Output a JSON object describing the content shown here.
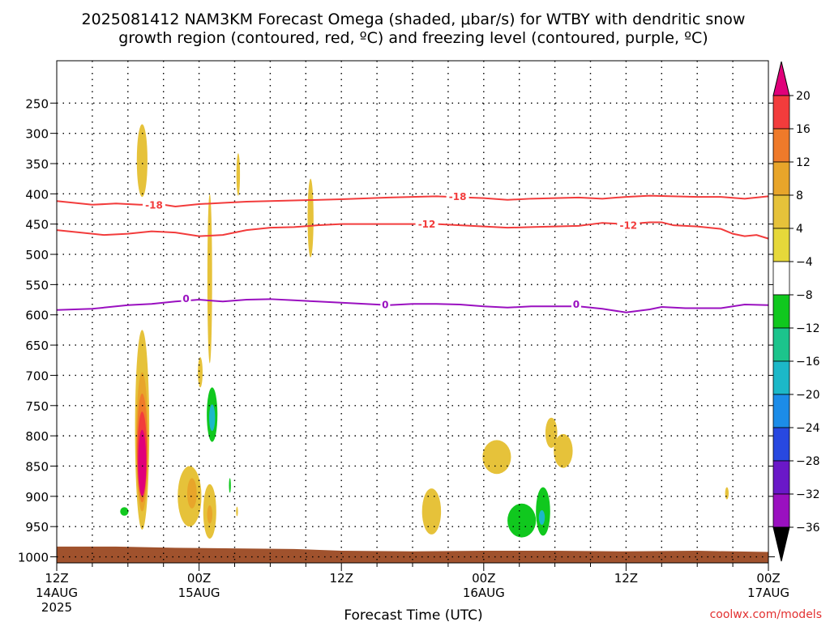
{
  "chart_data": {
    "type": "heatmap",
    "title_line1": "2025081412 NAM3KM Forecast Omega (shaded, μbar/s) for WTBY with dendritic snow",
    "title_line2": "growth region (contoured, red, ºC) and freezing level (contoured, purple, ºC)",
    "xlabel": "Forecast Time (UTC)",
    "ylabel": "",
    "credit": "coolwx.com/models",
    "x_range_hours": [
      0,
      60
    ],
    "y_range_mb": [
      1010,
      180
    ],
    "y_ticks": [
      {
        "value": 250,
        "label": "250"
      },
      {
        "value": 300,
        "label": "300"
      },
      {
        "value": 350,
        "label": "350"
      },
      {
        "value": 400,
        "label": "400"
      },
      {
        "value": 450,
        "label": "450"
      },
      {
        "value": 500,
        "label": "500"
      },
      {
        "value": 550,
        "label": "550"
      },
      {
        "value": 600,
        "label": "600"
      },
      {
        "value": 650,
        "label": "650"
      },
      {
        "value": 700,
        "label": "700"
      },
      {
        "value": 750,
        "label": "750"
      },
      {
        "value": 800,
        "label": "800"
      },
      {
        "value": 850,
        "label": "850"
      },
      {
        "value": 900,
        "label": "900"
      },
      {
        "value": 950,
        "label": "950"
      },
      {
        "value": 1000,
        "label": "1000"
      }
    ],
    "x_ticks": [
      {
        "hour": 0,
        "line1": "12Z",
        "line2": "14AUG",
        "line3": "2025"
      },
      {
        "hour": 12,
        "line1": "00Z",
        "line2": "15AUG",
        "line3": ""
      },
      {
        "hour": 24,
        "line1": "12Z",
        "line2": "",
        "line3": ""
      },
      {
        "hour": 36,
        "line1": "00Z",
        "line2": "16AUG",
        "line3": ""
      },
      {
        "hour": 48,
        "line1": "12Z",
        "line2": "",
        "line3": ""
      },
      {
        "hour": 60,
        "line1": "00Z",
        "line2": "17AUG",
        "line3": ""
      }
    ],
    "grid": true,
    "colorbar": {
      "labels": [
        "20",
        "16",
        "12",
        "8",
        "4",
        "−4",
        "−8",
        "−12",
        "−16",
        "−20",
        "−24",
        "−28",
        "−32",
        "−36"
      ],
      "top_arrow_color": "#e0007a",
      "bottom_arrow_color": "#000000",
      "bin_colors": [
        "#f23c3c",
        "#ef7a2a",
        "#e8a52a",
        "#e6c23a",
        "#e6d83a",
        "#ffffff",
        "#10c81e",
        "#1cc48c",
        "#1cb8c8",
        "#1c8ce8",
        "#2848e0",
        "#6a18c8",
        "#9a10c0",
        "#a8a8a8"
      ]
    },
    "contours": [
      {
        "name": "-18",
        "color": "#f23c3c",
        "points": [
          [
            0,
            412
          ],
          [
            3,
            418
          ],
          [
            5,
            416
          ],
          [
            7,
            418
          ],
          [
            9,
            418
          ],
          [
            10,
            421
          ],
          [
            12,
            417
          ],
          [
            14,
            415
          ],
          [
            16,
            413
          ],
          [
            20,
            411
          ],
          [
            24,
            409
          ],
          [
            28,
            406
          ],
          [
            32,
            404
          ],
          [
            36,
            407
          ],
          [
            38,
            410
          ],
          [
            40,
            408
          ],
          [
            44,
            406
          ],
          [
            46,
            408
          ],
          [
            48,
            405
          ],
          [
            50,
            403
          ],
          [
            52,
            404
          ],
          [
            54,
            405
          ],
          [
            56,
            405
          ],
          [
            58,
            408
          ],
          [
            60,
            404
          ]
        ],
        "labels": [
          {
            "x": 8.2,
            "y": 418,
            "text": "-18"
          },
          {
            "x": 33.8,
            "y": 404,
            "text": "-18"
          }
        ]
      },
      {
        "name": "-12",
        "color": "#f23c3c",
        "points": [
          [
            0,
            460
          ],
          [
            2,
            464
          ],
          [
            4,
            468
          ],
          [
            6,
            466
          ],
          [
            8,
            462
          ],
          [
            10,
            464
          ],
          [
            12,
            470
          ],
          [
            14,
            468
          ],
          [
            16,
            460
          ],
          [
            18,
            456
          ],
          [
            20,
            455
          ],
          [
            22,
            452
          ],
          [
            24,
            450
          ],
          [
            28,
            450
          ],
          [
            32,
            450
          ],
          [
            34,
            452
          ],
          [
            36,
            454
          ],
          [
            38,
            456
          ],
          [
            40,
            455
          ],
          [
            42,
            454
          ],
          [
            44,
            453
          ],
          [
            46,
            448
          ],
          [
            47,
            449
          ],
          [
            48,
            450
          ],
          [
            50,
            447
          ],
          [
            51,
            447
          ],
          [
            52,
            452
          ],
          [
            54,
            454
          ],
          [
            56,
            458
          ],
          [
            57,
            466
          ],
          [
            58,
            470
          ],
          [
            59,
            468
          ],
          [
            60,
            474
          ]
        ],
        "labels": [
          {
            "x": 31.2,
            "y": 450,
            "text": "-12"
          },
          {
            "x": 48.2,
            "y": 452,
            "text": "-12"
          }
        ]
      },
      {
        "name": "0",
        "color": "#9a10c0",
        "points": [
          [
            0,
            592
          ],
          [
            3,
            590
          ],
          [
            6,
            584
          ],
          [
            8,
            582
          ],
          [
            10,
            578
          ],
          [
            12,
            575
          ],
          [
            14,
            578
          ],
          [
            16,
            575
          ],
          [
            18,
            574
          ],
          [
            20,
            576
          ],
          [
            22,
            578
          ],
          [
            24,
            580
          ],
          [
            26,
            582
          ],
          [
            28,
            584
          ],
          [
            30,
            582
          ],
          [
            32,
            582
          ],
          [
            34,
            583
          ],
          [
            36,
            586
          ],
          [
            38,
            588
          ],
          [
            40,
            586
          ],
          [
            42,
            586
          ],
          [
            44,
            586
          ],
          [
            46,
            590
          ],
          [
            48,
            596
          ],
          [
            50,
            591
          ],
          [
            51,
            587
          ],
          [
            53,
            589
          ],
          [
            56,
            589
          ],
          [
            58,
            583
          ],
          [
            60,
            584
          ]
        ],
        "labels": [
          {
            "x": 10.9,
            "y": 573,
            "text": "0"
          },
          {
            "x": 27.7,
            "y": 583,
            "text": "0"
          },
          {
            "x": 43.8,
            "y": 582,
            "text": "0"
          }
        ]
      }
    ],
    "omega_blobs": [
      {
        "x": 7.2,
        "y": 345,
        "rx": 0.45,
        "ry": 60,
        "value": 5
      },
      {
        "x": 7.2,
        "y": 790,
        "rx": 0.6,
        "ry": 165,
        "value": 5
      },
      {
        "x": 7.2,
        "y": 810,
        "rx": 0.5,
        "ry": 115,
        "value": 9
      },
      {
        "x": 7.2,
        "y": 820,
        "rx": 0.45,
        "ry": 90,
        "value": 13
      },
      {
        "x": 7.2,
        "y": 830,
        "rx": 0.4,
        "ry": 70,
        "value": 17
      },
      {
        "x": 7.2,
        "y": 845,
        "rx": 0.34,
        "ry": 55,
        "value": 21
      },
      {
        "x": 5.7,
        "y": 925,
        "rx": 0.35,
        "ry": 7,
        "value": -5
      },
      {
        "x": 12.9,
        "y": 540,
        "rx": 0.2,
        "ry": 140,
        "value": 5
      },
      {
        "x": 13.1,
        "y": 765,
        "rx": 0.45,
        "ry": 45,
        "value": -5
      },
      {
        "x": 13.1,
        "y": 770,
        "rx": 0.25,
        "ry": 22,
        "value": -13
      },
      {
        "x": 14.6,
        "y": 882,
        "rx": 0.08,
        "ry": 12,
        "value": -5
      },
      {
        "x": 11.2,
        "y": 900,
        "rx": 1.0,
        "ry": 50,
        "value": 5
      },
      {
        "x": 11.4,
        "y": 895,
        "rx": 0.4,
        "ry": 25,
        "value": 9
      },
      {
        "x": 12.9,
        "y": 925,
        "rx": 0.55,
        "ry": 45,
        "value": 5
      },
      {
        "x": 12.9,
        "y": 930,
        "rx": 0.22,
        "ry": 15,
        "value": 9
      },
      {
        "x": 12.1,
        "y": 695,
        "rx": 0.2,
        "ry": 25,
        "value": 5
      },
      {
        "x": 15.3,
        "y": 368,
        "rx": 0.15,
        "ry": 35,
        "value": 5
      },
      {
        "x": 15.2,
        "y": 925,
        "rx": 0.08,
        "ry": 8,
        "value": 5
      },
      {
        "x": 21.4,
        "y": 440,
        "rx": 0.25,
        "ry": 65,
        "value": 5
      },
      {
        "x": 31.6,
        "y": 925,
        "rx": 0.8,
        "ry": 38,
        "value": 5
      },
      {
        "x": 37.1,
        "y": 835,
        "rx": 1.2,
        "ry": 28,
        "value": 5
      },
      {
        "x": 41.7,
        "y": 795,
        "rx": 0.5,
        "ry": 25,
        "value": 5
      },
      {
        "x": 42.7,
        "y": 825,
        "rx": 0.8,
        "ry": 28,
        "value": 5
      },
      {
        "x": 39.2,
        "y": 940,
        "rx": 1.2,
        "ry": 28,
        "value": -5
      },
      {
        "x": 41.0,
        "y": 925,
        "rx": 0.6,
        "ry": 40,
        "value": -5
      },
      {
        "x": 40.9,
        "y": 935,
        "rx": 0.25,
        "ry": 12,
        "value": -13
      },
      {
        "x": 56.5,
        "y": 895,
        "rx": 0.15,
        "ry": 10,
        "value": 5
      }
    ],
    "terrain_color": "#a0522d",
    "terrain": [
      [
        0,
        983
      ],
      [
        5,
        983
      ],
      [
        10,
        985
      ],
      [
        15,
        986
      ],
      [
        20,
        987
      ],
      [
        24,
        990
      ],
      [
        30,
        991
      ],
      [
        36,
        990
      ],
      [
        42,
        990
      ],
      [
        48,
        991
      ],
      [
        54,
        990
      ],
      [
        60,
        992
      ]
    ]
  }
}
